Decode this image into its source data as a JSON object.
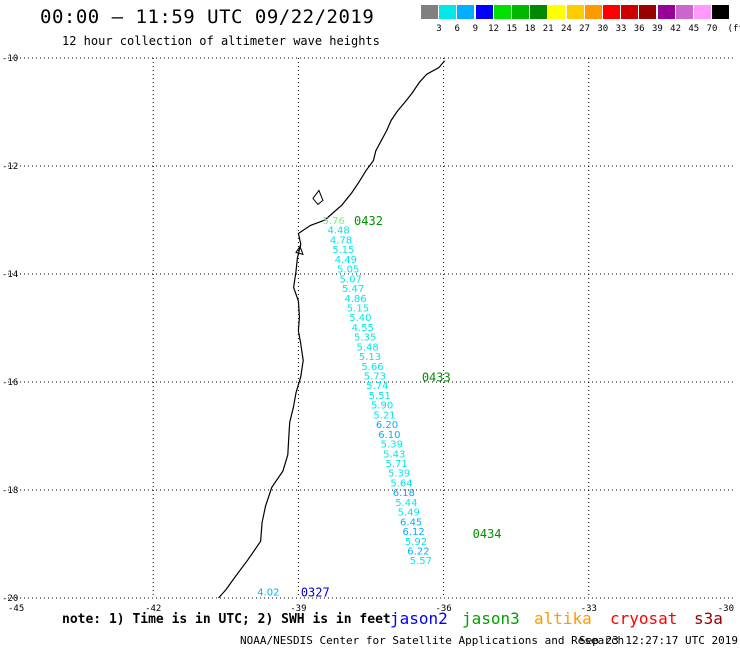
{
  "header": {
    "title": "00:00 – 11:59 UTC 09/22/2019",
    "subtitle": "12 hour collection of altimeter wave heights"
  },
  "legend": {
    "unit": "(ft)",
    "bins": [
      {
        "label": "3",
        "color": "#808080"
      },
      {
        "label": "6",
        "color": "#00e8e8"
      },
      {
        "label": "9",
        "color": "#00b0ff"
      },
      {
        "label": "12",
        "color": "#0000ff"
      },
      {
        "label": "15",
        "color": "#00e000"
      },
      {
        "label": "18",
        "color": "#00b800"
      },
      {
        "label": "21",
        "color": "#008800"
      },
      {
        "label": "24",
        "color": "#ffff00"
      },
      {
        "label": "27",
        "color": "#ffcc00"
      },
      {
        "label": "30",
        "color": "#ff9900"
      },
      {
        "label": "33",
        "color": "#ff0000"
      },
      {
        "label": "36",
        "color": "#cc0000"
      },
      {
        "label": "39",
        "color": "#990000"
      },
      {
        "label": "42",
        "color": "#990099"
      },
      {
        "label": "45",
        "color": "#cc66cc"
      },
      {
        "label": "70",
        "color": "#ff99ff"
      },
      {
        "label": "",
        "color": "#000000"
      }
    ]
  },
  "axes": {
    "lon_min": -45,
    "lon_max": -30,
    "lat_min": -20,
    "lat_max": -10,
    "lon_ticks": [
      {
        "value": -45,
        "label": "-45"
      },
      {
        "value": -42,
        "label": "-42"
      },
      {
        "value": -39,
        "label": "-39"
      },
      {
        "value": -36,
        "label": "-36"
      },
      {
        "value": -33,
        "label": "-33"
      },
      {
        "value": -30,
        "label": "-30"
      }
    ],
    "lat_ticks": [
      {
        "value": -10,
        "label": "-10"
      },
      {
        "value": -12,
        "label": "-12"
      },
      {
        "value": -14,
        "label": "-14"
      },
      {
        "value": -16,
        "label": "-16"
      },
      {
        "value": -18,
        "label": "-18"
      },
      {
        "value": -20,
        "label": "-20"
      }
    ]
  },
  "coastline": [
    [
      -35.98,
      -10.05
    ],
    [
      -36.1,
      -10.18
    ],
    [
      -36.35,
      -10.3
    ],
    [
      -36.5,
      -10.45
    ],
    [
      -36.65,
      -10.65
    ],
    [
      -36.8,
      -10.82
    ],
    [
      -36.95,
      -10.98
    ],
    [
      -37.08,
      -11.15
    ],
    [
      -37.18,
      -11.35
    ],
    [
      -37.3,
      -11.55
    ],
    [
      -37.4,
      -11.72
    ],
    [
      -37.45,
      -11.9
    ],
    [
      -37.6,
      -12.08
    ],
    [
      -37.75,
      -12.3
    ],
    [
      -37.9,
      -12.5
    ],
    [
      -38.1,
      -12.72
    ],
    [
      -38.3,
      -12.88
    ],
    [
      -38.45,
      -13.0
    ],
    [
      -38.75,
      -13.1
    ],
    [
      -39.0,
      -13.25
    ],
    [
      -38.95,
      -13.45
    ],
    [
      -39.02,
      -13.7
    ],
    [
      -39.05,
      -13.95
    ],
    [
      -39.1,
      -14.25
    ],
    [
      -39.0,
      -14.5
    ],
    [
      -38.98,
      -14.8
    ],
    [
      -39.0,
      -15.05
    ],
    [
      -38.95,
      -15.3
    ],
    [
      -38.9,
      -15.6
    ],
    [
      -38.95,
      -15.9
    ],
    [
      -39.05,
      -16.2
    ],
    [
      -39.1,
      -16.45
    ],
    [
      -39.18,
      -16.75
    ],
    [
      -39.2,
      -17.05
    ],
    [
      -39.22,
      -17.35
    ],
    [
      -39.32,
      -17.65
    ],
    [
      -39.55,
      -17.95
    ],
    [
      -39.68,
      -18.3
    ],
    [
      -39.75,
      -18.6
    ],
    [
      -39.78,
      -18.95
    ],
    [
      -40.05,
      -19.3
    ],
    [
      -40.3,
      -19.6
    ],
    [
      -40.5,
      -19.85
    ],
    [
      -40.65,
      -20.0
    ]
  ],
  "tracks": [
    {
      "id": "0432",
      "color": "#009000",
      "label_lon": -37.85,
      "label_lat": -13.0,
      "points": [
        {
          "lon": -38.5,
          "lat": -13.0,
          "swh": "5.76",
          "color": "#66ff66"
        },
        {
          "lon": -38.4,
          "lat": -13.18,
          "swh": "4.48",
          "color": "#00e8e8"
        },
        {
          "lon": -38.35,
          "lat": -13.36,
          "swh": "4.78",
          "color": "#00e8e8"
        },
        {
          "lon": -38.3,
          "lat": -13.54,
          "swh": "5.15",
          "color": "#00e8e8"
        },
        {
          "lon": -38.25,
          "lat": -13.72,
          "swh": "4.49",
          "color": "#00e8e8"
        },
        {
          "lon": -38.2,
          "lat": -13.9,
          "swh": "5.05",
          "color": "#00e8e8"
        },
        {
          "lon": -38.15,
          "lat": -14.08,
          "swh": "5.07",
          "color": "#00e8e8"
        },
        {
          "lon": -38.1,
          "lat": -14.26,
          "swh": "5.47",
          "color": "#00e8e8"
        },
        {
          "lon": -38.05,
          "lat": -14.44,
          "swh": "4.86",
          "color": "#00e8e8"
        },
        {
          "lon": -38.0,
          "lat": -14.62,
          "swh": "5.15",
          "color": "#00e8e8"
        },
        {
          "lon": -37.95,
          "lat": -14.8,
          "swh": "5.40",
          "color": "#00e8e8"
        }
      ]
    },
    {
      "id": "0433",
      "color": "#009000",
      "label_lon": -36.45,
      "label_lat": -15.9,
      "points": [
        {
          "lon": -37.9,
          "lat": -14.98,
          "swh": "4.55",
          "color": "#00e8e8"
        },
        {
          "lon": -37.85,
          "lat": -15.16,
          "swh": "5.35",
          "color": "#00e8e8"
        },
        {
          "lon": -37.8,
          "lat": -15.34,
          "swh": "5.48",
          "color": "#00e8e8"
        },
        {
          "lon": -37.75,
          "lat": -15.52,
          "swh": "5.13",
          "color": "#00e8e8"
        },
        {
          "lon": -37.7,
          "lat": -15.7,
          "swh": "5.66",
          "color": "#00e8e8"
        },
        {
          "lon": -37.65,
          "lat": -15.88,
          "swh": "5.73",
          "color": "#00e8e8"
        },
        {
          "lon": -37.6,
          "lat": -16.06,
          "swh": "5.74",
          "color": "#00e8e8"
        },
        {
          "lon": -37.55,
          "lat": -16.24,
          "swh": "5.51",
          "color": "#00e8e8"
        },
        {
          "lon": -37.5,
          "lat": -16.42,
          "swh": "5.90",
          "color": "#00e8e8"
        },
        {
          "lon": -37.45,
          "lat": -16.6,
          "swh": "5.21",
          "color": "#00e8e8"
        },
        {
          "lon": -37.4,
          "lat": -16.78,
          "swh": "6.20",
          "color": "#00b0ff"
        },
        {
          "lon": -37.35,
          "lat": -16.96,
          "swh": "6.10",
          "color": "#00b0ff"
        },
        {
          "lon": -37.3,
          "lat": -17.14,
          "swh": "5.39",
          "color": "#00e8e8"
        },
        {
          "lon": -37.25,
          "lat": -17.32,
          "swh": "5.43",
          "color": "#00e8e8"
        },
        {
          "lon": -37.2,
          "lat": -17.5,
          "swh": "5.71",
          "color": "#00e8e8"
        },
        {
          "lon": -37.15,
          "lat": -17.68,
          "swh": "5.39",
          "color": "#00e8e8"
        }
      ]
    },
    {
      "id": "0434",
      "color": "#009000",
      "label_lon": -35.4,
      "label_lat": -18.8,
      "points": [
        {
          "lon": -37.1,
          "lat": -17.86,
          "swh": "5.64",
          "color": "#00e8e8"
        },
        {
          "lon": -37.05,
          "lat": -18.04,
          "swh": "6.18",
          "color": "#00b0ff"
        },
        {
          "lon": -37.0,
          "lat": -18.22,
          "swh": "5.44",
          "color": "#00e8e8"
        },
        {
          "lon": -36.95,
          "lat": -18.4,
          "swh": "5.49",
          "color": "#00e8e8"
        },
        {
          "lon": -36.9,
          "lat": -18.58,
          "swh": "6.45",
          "color": "#00b0ff"
        },
        {
          "lon": -36.85,
          "lat": -18.76,
          "swh": "6.12",
          "color": "#00b0ff"
        },
        {
          "lon": -36.8,
          "lat": -18.94,
          "swh": "5.92",
          "color": "#00e8e8"
        },
        {
          "lon": -36.75,
          "lat": -19.12,
          "swh": "6.22",
          "color": "#00b0ff"
        },
        {
          "lon": -36.7,
          "lat": -19.3,
          "swh": "5.57",
          "color": "#00e8e8"
        }
      ]
    },
    {
      "id": "0327",
      "color": "#0000cc",
      "label_lon": -38.95,
      "label_lat": -19.88,
      "points": [
        {
          "lon": -39.85,
          "lat": -19.88,
          "swh": "4.02",
          "color": "#00b0ff"
        }
      ]
    }
  ],
  "note": "note: 1) Time is in UTC; 2) SWH is in feet",
  "satellites": [
    {
      "name": "jason2",
      "color": "#0000ff"
    },
    {
      "name": "jason3",
      "color": "#00a000"
    },
    {
      "name": "altika",
      "color": "#ff9900"
    },
    {
      "name": "cryosat",
      "color": "#ff0000"
    },
    {
      "name": "s3a",
      "color": "#990000"
    }
  ],
  "footer": {
    "org": "NOAA/NESDIS Center for Satellite Applications and Research",
    "timestamp": "Sep 23 12:27:17 UTC 2019"
  }
}
